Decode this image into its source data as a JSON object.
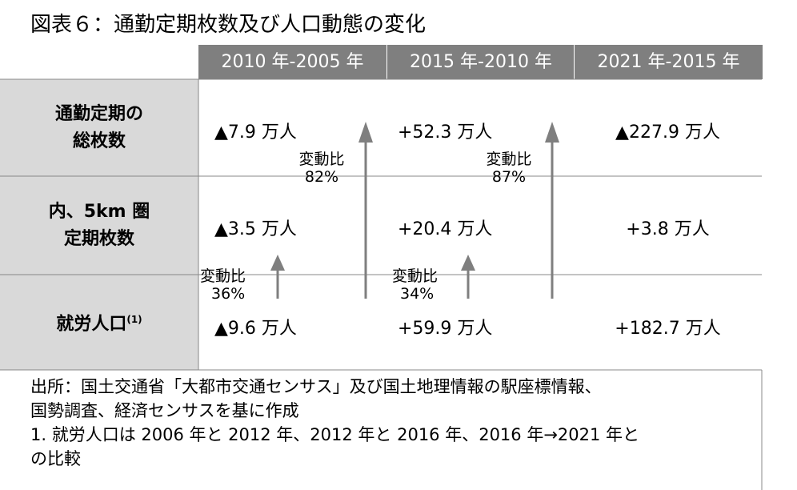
{
  "title": "図表６：通勤定期枚数及び人口動態の変化",
  "table": {
    "header": [
      "2010 年-2005 年",
      "2015 年-2010 年",
      "2021 年-2015 年"
    ],
    "rows": [
      {
        "label": [
          "通勤定期の",
          "総枚数"
        ],
        "cells": [
          "▲7.9 万人",
          "+52.3 万人",
          "▲227.9 万人"
        ]
      },
      {
        "label": [
          "内、5km 圏",
          "定期枚数"
        ],
        "cells": [
          "▲3.5 万人",
          "+20.4 万人",
          "+3.8 万人"
        ]
      },
      {
        "label": [
          "就労人口",
          "(1)"
        ],
        "cells": [
          "▲9.6 万人",
          "+59.9 万人",
          "+182.7 万人"
        ]
      }
    ]
  },
  "annotations": [
    {
      "label": "変動比",
      "value": "82%"
    },
    {
      "label": "変動比",
      "value": "87%"
    },
    {
      "label": "変動比",
      "value": "36%"
    },
    {
      "label": "変動比",
      "value": "34%"
    }
  ],
  "footnote": [
    "出所：国土交通省「大都市交通センサス」及び国土地理情報の駅座標情報、",
    "国勢調査、経済センサスを基に作成",
    "1. 就労人口は 2006 年と 2012 年、2012 年と 2016 年、2016 年→2021 年と",
    "の比較"
  ]
}
